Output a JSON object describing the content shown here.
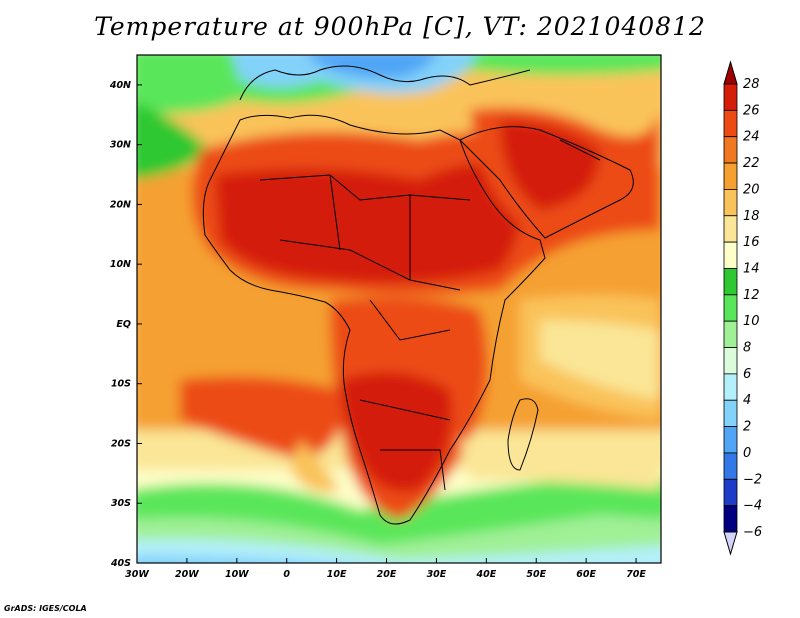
{
  "title": "Temperature at 900hPa [C], VT: 2021040812",
  "credit": "GrADS: IGES/COLA",
  "map": {
    "lon_range": [
      -30,
      75
    ],
    "lat_range": [
      -40,
      45
    ],
    "lon_ticks": [
      {
        "value": -30,
        "label": "30W"
      },
      {
        "value": -20,
        "label": "20W"
      },
      {
        "value": -10,
        "label": "10W"
      },
      {
        "value": 0,
        "label": "0"
      },
      {
        "value": 10,
        "label": "10E"
      },
      {
        "value": 20,
        "label": "20E"
      },
      {
        "value": 30,
        "label": "30E"
      },
      {
        "value": 40,
        "label": "40E"
      },
      {
        "value": 50,
        "label": "50E"
      },
      {
        "value": 60,
        "label": "60E"
      },
      {
        "value": 70,
        "label": "70E"
      }
    ],
    "lat_ticks": [
      {
        "value": 40,
        "label": "40N"
      },
      {
        "value": 30,
        "label": "30N"
      },
      {
        "value": 20,
        "label": "20N"
      },
      {
        "value": 10,
        "label": "10N"
      },
      {
        "value": 0,
        "label": "EQ"
      },
      {
        "value": -10,
        "label": "10S"
      },
      {
        "value": -20,
        "label": "20S"
      },
      {
        "value": -30,
        "label": "30S"
      },
      {
        "value": -40,
        "label": "40S"
      }
    ]
  },
  "colorbar": {
    "levels": [
      "28",
      "26",
      "24",
      "22",
      "20",
      "18",
      "16",
      "14",
      "12",
      "10",
      "8",
      "6",
      "4",
      "2",
      "0",
      "−2",
      "−4",
      "−6"
    ],
    "colors": [
      "#a00000",
      "#d41e08",
      "#ec4c14",
      "#f07820",
      "#f5a030",
      "#fac35a",
      "#fae696",
      "#fefec8",
      "#2dc832",
      "#5ae65a",
      "#a0f096",
      "#dcfadc",
      "#b4f0fa",
      "#82d2fa",
      "#50a5f5",
      "#3278e6",
      "#1e3cc8",
      "#000080",
      "#d2d2fa"
    ]
  }
}
